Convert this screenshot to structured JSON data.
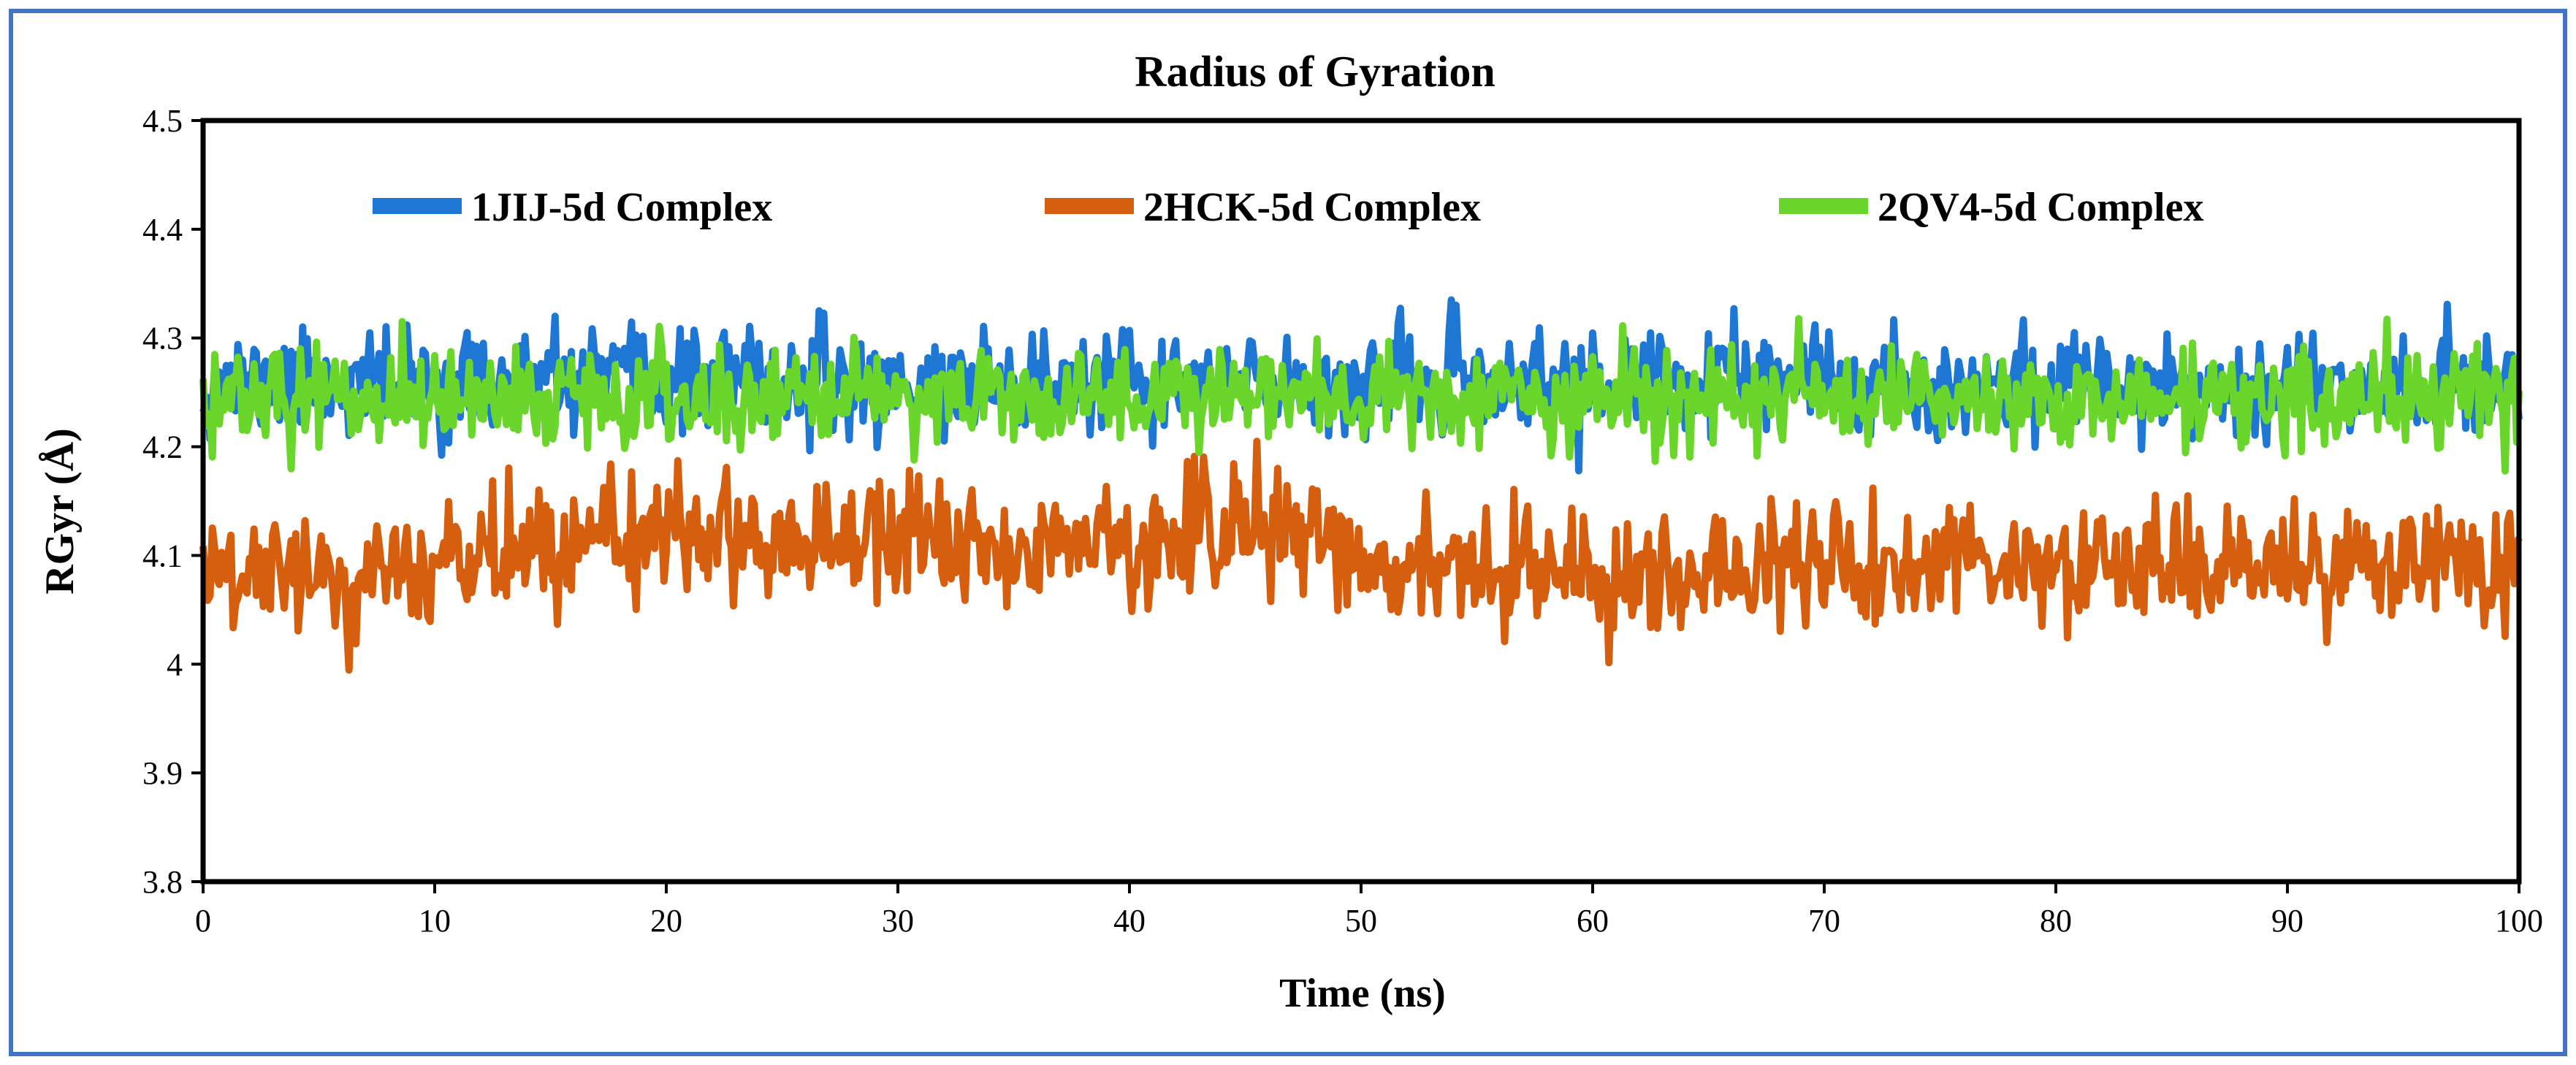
{
  "chart_data": {
    "type": "line",
    "title": "Radius of Gyration",
    "xlabel": "Time (ns)",
    "ylabel": "RGyr (Å)",
    "xlim": [
      0,
      100
    ],
    "ylim": [
      3.8,
      4.5
    ],
    "xticks": [
      0,
      10,
      20,
      30,
      40,
      50,
      60,
      70,
      80,
      90,
      100
    ],
    "yticks": [
      3.8,
      3.9,
      4,
      4.1,
      4.2,
      4.3,
      4.4,
      4.5
    ],
    "xtick_labels": [
      "0",
      "10",
      "20",
      "30",
      "40",
      "50",
      "60",
      "70",
      "80",
      "90",
      "100"
    ],
    "ytick_labels": [
      "3.8",
      "3.9",
      "4",
      "4.1",
      "4.2",
      "4.3",
      "4.4",
      "4.5"
    ],
    "grid": false,
    "legend_position": "top",
    "series": [
      {
        "name": "1JIJ-5d Complex",
        "color": "#1f77d4",
        "mean": 4.258,
        "amplitude": 0.042,
        "min": 4.15,
        "max": 4.335,
        "n_points": 1000
      },
      {
        "name": "2HCK-5d Complex",
        "color": "#d55e0f",
        "mean": 4.1,
        "amplitude": 0.05,
        "min": 3.978,
        "max": 4.205,
        "n_points": 1000,
        "trend_keypoints": {
          "x": [
            0,
            10,
            20,
            30,
            40,
            47,
            50,
            60,
            70,
            80,
            90,
            100
          ],
          "y": [
            4.08,
            4.09,
            4.12,
            4.12,
            4.11,
            4.13,
            4.09,
            4.085,
            4.09,
            4.09,
            4.09,
            4.09
          ]
        }
      },
      {
        "name": "2QV4-5d Complex",
        "color": "#6ad62b",
        "mean": 4.245,
        "amplitude": 0.04,
        "min": 4.145,
        "max": 4.348,
        "n_points": 1000
      }
    ]
  }
}
